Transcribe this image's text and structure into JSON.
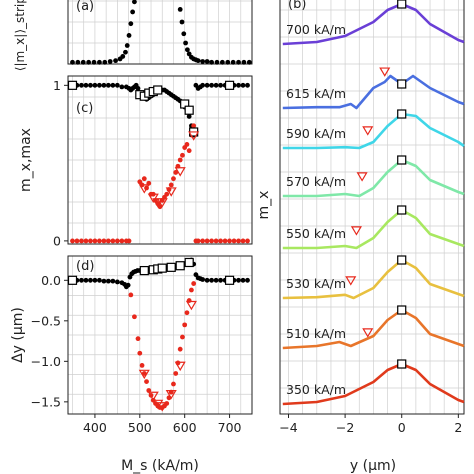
{
  "figure": {
    "panels": {
      "a": {
        "label": "(a)"
      },
      "b": {
        "label": "(b)"
      },
      "c": {
        "label": "(c)"
      },
      "d": {
        "label": "(d)"
      }
    }
  },
  "chart_data": [
    {
      "id": "a",
      "type": "scatter",
      "ylabel": "⟨|m_x|⟩_stripe",
      "xlim": [
        340,
        750
      ],
      "ylim": [
        0,
        1
      ],
      "x_ticks": [],
      "y_ticks": [],
      "series": [
        {
          "color": "#000000",
          "x": [
            350,
            362,
            374,
            386,
            398,
            410,
            422,
            434,
            446,
            456,
            462,
            468,
            472,
            476,
            480,
            484,
            488,
            492,
            496,
            500,
            505,
            510,
            515,
            520,
            530,
            540,
            550,
            560,
            570,
            575,
            580,
            585,
            590,
            594,
            598,
            602,
            606,
            610,
            615,
            620,
            625,
            630,
            640,
            650,
            660,
            672,
            684,
            696,
            708,
            720,
            732,
            744
          ],
          "y": [
            0.02,
            0.02,
            0.02,
            0.02,
            0.02,
            0.02,
            0.02,
            0.03,
            0.04,
            0.06,
            0.09,
            0.14,
            0.22,
            0.34,
            0.48,
            0.62,
            0.74,
            0.82,
            0.87,
            0.9,
            0.92,
            0.93,
            0.94,
            0.95,
            0.96,
            0.97,
            0.97,
            0.97,
            0.96,
            0.95,
            0.9,
            0.8,
            0.65,
            0.5,
            0.36,
            0.25,
            0.17,
            0.12,
            0.08,
            0.06,
            0.05,
            0.04,
            0.03,
            0.03,
            0.02,
            0.02,
            0.02,
            0.02,
            0.02,
            0.02,
            0.02,
            0.02
          ]
        }
      ]
    },
    {
      "id": "c",
      "type": "scatter",
      "ylabel": "m_x,max",
      "xlim": [
        340,
        750
      ],
      "ylim": [
        -0.02,
        1.06
      ],
      "y_ticks": [
        "0",
        "1"
      ],
      "y_tick_values": [
        0,
        1
      ],
      "series": [
        {
          "color": "#000000",
          "marker": "dot",
          "x": [
            350,
            360,
            370,
            380,
            390,
            400,
            410,
            420,
            430,
            440,
            450,
            460,
            470,
            476,
            480,
            484,
            488,
            492,
            496,
            500,
            505,
            510,
            515,
            520,
            525,
            530,
            535,
            540,
            545,
            550,
            555,
            560,
            565,
            570,
            575,
            580,
            585,
            590,
            595,
            600,
            605,
            610,
            615,
            620,
            625,
            630,
            635,
            640,
            650,
            660,
            670,
            680,
            690,
            700,
            710,
            720,
            730,
            740
          ],
          "y": [
            1.0,
            1.0,
            1.0,
            1.0,
            1.0,
            1.0,
            1.0,
            1.0,
            1.0,
            1.0,
            1.0,
            0.99,
            0.99,
            0.98,
            0.97,
            0.98,
            0.99,
            1.0,
            0.98,
            0.95,
            0.93,
            0.92,
            0.91,
            0.92,
            0.93,
            0.94,
            0.95,
            0.96,
            0.97,
            0.97,
            0.97,
            0.96,
            0.95,
            0.94,
            0.93,
            0.92,
            0.91,
            0.9,
            0.88,
            0.86,
            0.84,
            0.8,
            0.74,
            0.68,
            1.0,
            0.98,
            0.99,
            1.0,
            1.0,
            1.0,
            1.0,
            1.0,
            1.0,
            1.0,
            1.0,
            1.0,
            1.0,
            1.0
          ]
        },
        {
          "color": "#e8281c",
          "marker": "dot",
          "x": [
            350,
            360,
            370,
            380,
            390,
            400,
            410,
            420,
            430,
            440,
            450,
            460,
            470,
            476,
            500,
            505,
            510,
            515,
            520,
            525,
            530,
            535,
            540,
            545,
            550,
            555,
            560,
            565,
            570,
            575,
            580,
            585,
            590,
            595,
            600,
            605,
            610,
            615,
            620,
            625,
            630,
            640,
            650,
            660,
            670,
            680,
            690,
            700,
            710,
            720,
            730,
            740
          ],
          "y": [
            0,
            0,
            0,
            0,
            0,
            0,
            0,
            0,
            0,
            0,
            0,
            0,
            0,
            0,
            0.38,
            0.36,
            0.4,
            0.34,
            0.37,
            0.3,
            0.3,
            0.26,
            0.24,
            0.22,
            0.26,
            0.28,
            0.3,
            0.33,
            0.36,
            0.4,
            0.44,
            0.48,
            0.52,
            0.55,
            0.6,
            0.62,
            0.58,
            0.68,
            0.74,
            0,
            0,
            0,
            0,
            0,
            0,
            0,
            0,
            0,
            0,
            0,
            0,
            0
          ]
        },
        {
          "color": "#000000",
          "marker": "square-open",
          "x": [
            350,
            500,
            510,
            520,
            530,
            540,
            600,
            610,
            620,
            700
          ],
          "y": [
            1.0,
            0.94,
            0.93,
            0.95,
            0.96,
            0.97,
            0.88,
            0.84,
            0.7,
            1.0
          ]
        },
        {
          "color": "#e8281c",
          "marker": "triangle-open",
          "x": [
            510,
            530,
            540,
            550,
            570,
            590,
            620
          ],
          "y": [
            0.34,
            0.28,
            0.25,
            0.25,
            0.32,
            0.45,
            0.68
          ]
        }
      ]
    },
    {
      "id": "d",
      "type": "scatter",
      "xlabel": "M_s (kA/m)",
      "ylabel": "Δy (μm)",
      "xlim": [
        340,
        750
      ],
      "ylim": [
        -1.65,
        0.3
      ],
      "x_ticks": [
        "400",
        "500",
        "600",
        "700"
      ],
      "x_tick_values": [
        400,
        500,
        600,
        700
      ],
      "y_ticks": [
        "0.0",
        "−0.5",
        "−1.0",
        "−1.5"
      ],
      "y_tick_values": [
        0.0,
        -0.5,
        -1.0,
        -1.5
      ],
      "series": [
        {
          "color": "#000000",
          "marker": "dot",
          "x": [
            350,
            360,
            370,
            380,
            390,
            400,
            410,
            420,
            430,
            440,
            450,
            460,
            466,
            470,
            474,
            478,
            482,
            486,
            490,
            495,
            500,
            505,
            510,
            515,
            520,
            525,
            530,
            535,
            540,
            545,
            550,
            555,
            560,
            565,
            570,
            575,
            580,
            585,
            590,
            595,
            600,
            605,
            610,
            615,
            620,
            625,
            630,
            635,
            640,
            650,
            660,
            670,
            680,
            690,
            700,
            710,
            720,
            730,
            740
          ],
          "y": [
            0,
            0,
            0,
            0,
            0,
            0,
            0,
            -0.01,
            -0.01,
            -0.01,
            -0.02,
            -0.03,
            -0.05,
            -0.08,
            -0.06,
            0.04,
            0.08,
            0.1,
            0.11,
            0.12,
            0.12,
            0.13,
            0.13,
            0.13,
            0.14,
            0.14,
            0.14,
            0.15,
            0.15,
            0.15,
            0.15,
            0.15,
            0.15,
            0.16,
            0.16,
            0.16,
            0.17,
            0.17,
            0.18,
            0.19,
            0.2,
            0.22,
            0.24,
            0.25,
            0.2,
            0.07,
            0.03,
            0.02,
            0.01,
            0,
            0,
            0,
            0,
            0,
            0,
            0,
            0,
            0,
            0
          ]
        },
        {
          "color": "#e8281c",
          "marker": "dot",
          "x": [
            480,
            488,
            496,
            500,
            505,
            510,
            515,
            520,
            525,
            530,
            535,
            540,
            545,
            550,
            555,
            560,
            565,
            570,
            575,
            580,
            585,
            590,
            595,
            600,
            605,
            610,
            615,
            620
          ],
          "y": [
            -0.18,
            -0.45,
            -0.72,
            -0.9,
            -1.05,
            -1.15,
            -1.25,
            -1.36,
            -1.42,
            -1.48,
            -1.52,
            -1.55,
            -1.57,
            -1.57,
            -1.55,
            -1.52,
            -1.45,
            -1.38,
            -1.28,
            -1.15,
            -1.02,
            -0.85,
            -0.7,
            -0.55,
            -0.4,
            -0.25,
            -0.12,
            -0.04
          ]
        },
        {
          "color": "#000000",
          "marker": "square-open",
          "x": [
            350,
            510,
            530,
            540,
            550,
            570,
            590,
            610,
            700
          ],
          "y": [
            0,
            0.12,
            0.13,
            0.14,
            0.15,
            0.16,
            0.18,
            0.22,
            0
          ]
        },
        {
          "color": "#e8281c",
          "marker": "triangle-open",
          "x": [
            510,
            530,
            540,
            550,
            570,
            590,
            615
          ],
          "y": [
            -1.15,
            -1.42,
            -1.52,
            -1.55,
            -1.4,
            -1.05,
            -0.3
          ]
        }
      ]
    },
    {
      "id": "b",
      "type": "line",
      "xlabel": "y (μm)",
      "ylabel": "m_x",
      "xlim": [
        -4.3,
        2.2
      ],
      "x_ticks": [
        "−4",
        "−2",
        "0",
        "2"
      ],
      "x_tick_values": [
        -4,
        -2,
        0,
        2
      ],
      "series": [
        {
          "name": "700 kA/m",
          "color": "#6a3fd6",
          "x": [
            -4.2,
            -3,
            -2,
            -1,
            -0.5,
            0,
            0.5,
            1,
            2,
            2.2
          ],
          "y": [
            0.0,
            0.05,
            0.2,
            0.55,
            0.85,
            1.0,
            0.85,
            0.5,
            0.1,
            0.05
          ],
          "square_x": 0,
          "square_y": 1.0
        },
        {
          "name": "615 kA/m",
          "color": "#4a6fe0",
          "x": [
            -4.2,
            -3,
            -2.2,
            -1.8,
            -1.6,
            -1.3,
            -1.0,
            -0.6,
            -0.4,
            -0.2,
            0,
            0.4,
            1,
            2,
            2.2
          ],
          "y": [
            0.0,
            0.02,
            0.02,
            0.1,
            0.0,
            0.25,
            0.5,
            0.65,
            0.8,
            0.7,
            0.6,
            0.8,
            0.5,
            0.15,
            0.1
          ],
          "square_x": 0,
          "square_y": 0.6,
          "triangle_x": -0.6,
          "triangle_y": 0.92
        },
        {
          "name": "590 kA/m",
          "color": "#3fd6e8",
          "x": [
            -4.2,
            -3,
            -2,
            -1.5,
            -1,
            -0.5,
            0,
            0.5,
            1,
            2,
            2.2
          ],
          "y": [
            0.0,
            0.0,
            0.02,
            0.0,
            0.15,
            0.55,
            0.85,
            0.8,
            0.5,
            0.15,
            0.05
          ],
          "square_x": 0,
          "square_y": 0.85,
          "triangle_x": -1.2,
          "triangle_y": 0.45
        },
        {
          "name": "570 kA/m",
          "color": "#7fe8a8",
          "x": [
            -4.2,
            -3,
            -2,
            -1.5,
            -1,
            -0.5,
            0,
            0.5,
            1,
            2,
            2.2
          ],
          "y": [
            0.0,
            0.0,
            0.05,
            0.0,
            0.2,
            0.6,
            0.9,
            0.75,
            0.4,
            0.1,
            0.05
          ],
          "square_x": 0,
          "square_y": 0.9,
          "triangle_x": -1.4,
          "triangle_y": 0.5
        },
        {
          "name": "550 kA/m",
          "color": "#a8e860",
          "x": [
            -4.2,
            -3,
            -2,
            -1.6,
            -1,
            -0.5,
            0,
            0.5,
            1,
            2,
            2.2
          ],
          "y": [
            0.0,
            0.0,
            0.05,
            0.0,
            0.25,
            0.65,
            0.95,
            0.75,
            0.35,
            0.1,
            0.05
          ],
          "square_x": 0,
          "square_y": 0.95,
          "triangle_x": -1.6,
          "triangle_y": 0.45
        },
        {
          "name": "530 kA/m",
          "color": "#e8c03f",
          "x": [
            -4.2,
            -3,
            -2,
            -1.7,
            -1,
            -0.5,
            0,
            0.5,
            1,
            2,
            2.2
          ],
          "y": [
            0.0,
            0.02,
            0.08,
            0.0,
            0.25,
            0.65,
            0.95,
            0.75,
            0.35,
            0.1,
            0.05
          ],
          "square_x": 0,
          "square_y": 0.95,
          "triangle_x": -1.8,
          "triangle_y": 0.45
        },
        {
          "name": "510 kA/m",
          "color": "#e8752a",
          "x": [
            -4.2,
            -3,
            -2.2,
            -1.8,
            -1,
            -0.5,
            0,
            0.5,
            1,
            2,
            2.2
          ],
          "y": [
            0.0,
            0.05,
            0.15,
            0.05,
            0.3,
            0.7,
            0.95,
            0.75,
            0.35,
            0.1,
            0.05
          ],
          "square_x": 0,
          "square_y": 0.95,
          "triangle_x": -1.2,
          "triangle_y": 0.4
        },
        {
          "name": "350 kA/m",
          "color": "#e03a1c",
          "x": [
            -4.2,
            -3,
            -2,
            -1,
            -0.5,
            0,
            0.5,
            1,
            2,
            2.2
          ],
          "y": [
            0.0,
            0.05,
            0.2,
            0.55,
            0.85,
            1.0,
            0.85,
            0.5,
            0.1,
            0.05
          ],
          "square_x": 0,
          "square_y": 1.0
        }
      ]
    }
  ]
}
